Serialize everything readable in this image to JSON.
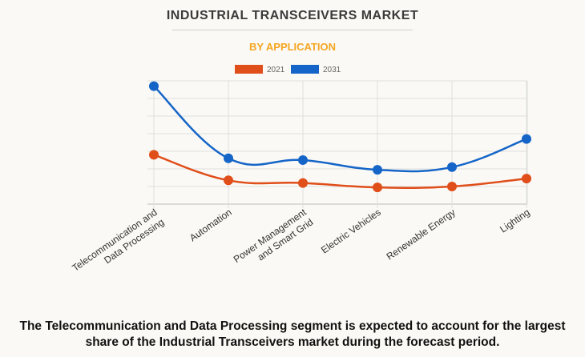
{
  "title": "INDUSTRIAL TRANSCEIVERS MARKET",
  "subtitle": "BY APPLICATION",
  "footer": [
    "The Telecommunication and Data Processing segment is expected to account for the largest",
    "share of the Industrial Transceivers market during the forecast period."
  ],
  "chart_data": {
    "type": "line",
    "categories": [
      [
        "Telecommunication and",
        "Data Processing"
      ],
      [
        "Automation"
      ],
      [
        "Power Management",
        "and Smart Grid"
      ],
      [
        "Electric Vehicles"
      ],
      [
        "Renewable Energy"
      ],
      [
        "Lighting"
      ]
    ],
    "series": [
      {
        "name": "2021",
        "color": "#e04e1a",
        "values": [
          2.8,
          1.35,
          1.2,
          0.95,
          1.0,
          1.45
        ]
      },
      {
        "name": "2031",
        "color": "#1565c8",
        "values": [
          6.7,
          2.6,
          2.5,
          1.95,
          2.1,
          3.7
        ]
      }
    ],
    "ylim": [
      0,
      7
    ],
    "y_tick_labels_shown": false,
    "grid": true,
    "legend": "top"
  }
}
